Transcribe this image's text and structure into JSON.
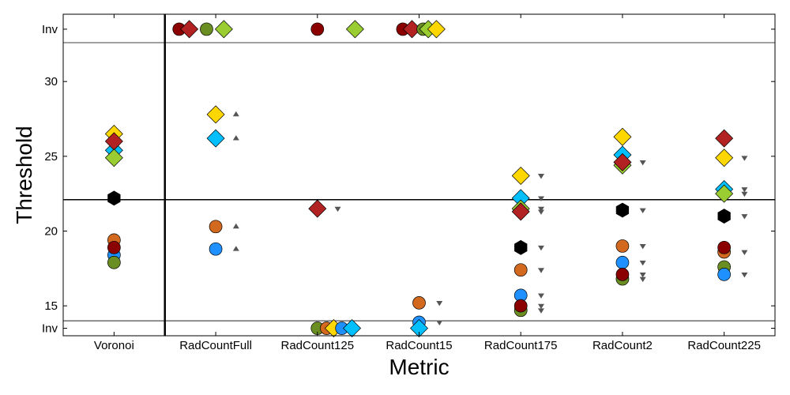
{
  "chart_data": {
    "type": "scatter",
    "xlabel": "Metric",
    "ylabel": "Threshold",
    "categories": [
      "Voronoi",
      "RadCountFull",
      "RadCount125",
      "RadCount15",
      "RadCount175",
      "RadCount2",
      "RadCount225"
    ],
    "ylim": [
      13.0,
      34.5
    ],
    "ytick_values": [
      15,
      20,
      25,
      30
    ],
    "ytick_labels": [
      "15",
      "20",
      "25",
      "30"
    ],
    "inv_label": "Inv",
    "inv_top_value": 33.5,
    "inv_bottom_value": 13.5,
    "reference_lines": [
      32.6,
      22.1,
      14.0
    ],
    "grid": false,
    "legend": "none",
    "colors": {
      "gold": "#FFD700",
      "deepskyblue": "#00BFFF",
      "firebrick": "#B22222",
      "yellowgreen": "#9ACD32",
      "black": "#000000",
      "chocolate": "#D2691E",
      "dodgerblue": "#1E90FF",
      "darkred": "#8B0000",
      "olivedrab": "#6B8E23",
      "arrow": "#555555"
    },
    "points": [
      {
        "cat": "Voronoi",
        "offset": 0,
        "y": 26.5,
        "shape": "diamond",
        "color": "gold"
      },
      {
        "cat": "Voronoi",
        "offset": 0,
        "y": 25.4,
        "shape": "diamond",
        "color": "deepskyblue"
      },
      {
        "cat": "Voronoi",
        "offset": 0,
        "y": 26.0,
        "shape": "diamond",
        "color": "firebrick"
      },
      {
        "cat": "Voronoi",
        "offset": 0,
        "y": 24.9,
        "shape": "diamond",
        "color": "yellowgreen"
      },
      {
        "cat": "Voronoi",
        "offset": 0,
        "y": 22.2,
        "shape": "hexagon",
        "color": "black"
      },
      {
        "cat": "Voronoi",
        "offset": 0,
        "y": 19.4,
        "shape": "circle",
        "color": "chocolate"
      },
      {
        "cat": "Voronoi",
        "offset": 0,
        "y": 18.4,
        "shape": "circle",
        "color": "dodgerblue"
      },
      {
        "cat": "Voronoi",
        "offset": 0,
        "y": 18.9,
        "shape": "circle",
        "color": "darkred"
      },
      {
        "cat": "Voronoi",
        "offset": 0,
        "y": 17.9,
        "shape": "circle",
        "color": "olivedrab"
      },
      {
        "cat": "RadCountFull",
        "offset": -0.36,
        "y": 33.5,
        "shape": "circle",
        "color": "darkred"
      },
      {
        "cat": "RadCountFull",
        "offset": -0.26,
        "y": 33.5,
        "shape": "diamond",
        "color": "firebrick"
      },
      {
        "cat": "RadCountFull",
        "offset": -0.09,
        "y": 33.5,
        "shape": "circle",
        "color": "olivedrab"
      },
      {
        "cat": "RadCountFull",
        "offset": 0.08,
        "y": 33.5,
        "shape": "diamond",
        "color": "yellowgreen"
      },
      {
        "cat": "RadCountFull",
        "offset": 0,
        "y": 27.8,
        "shape": "diamond",
        "color": "gold"
      },
      {
        "cat": "RadCountFull",
        "offset": 0,
        "y": 26.2,
        "shape": "diamond",
        "color": "deepskyblue"
      },
      {
        "cat": "RadCountFull",
        "offset": 0,
        "y": 20.3,
        "shape": "circle",
        "color": "chocolate"
      },
      {
        "cat": "RadCountFull",
        "offset": 0,
        "y": 18.8,
        "shape": "circle",
        "color": "dodgerblue"
      },
      {
        "cat": "RadCount125",
        "offset": 0,
        "y": 33.5,
        "shape": "circle",
        "color": "darkred"
      },
      {
        "cat": "RadCount125",
        "offset": 0.37,
        "y": 33.5,
        "shape": "diamond",
        "color": "yellowgreen"
      },
      {
        "cat": "RadCount125",
        "offset": 0,
        "y": 21.5,
        "shape": "diamond",
        "color": "firebrick"
      },
      {
        "cat": "RadCount125",
        "offset": 0,
        "y": 13.5,
        "shape": "circle",
        "color": "olivedrab"
      },
      {
        "cat": "RadCount125",
        "offset": 0.09,
        "y": 13.5,
        "shape": "circle",
        "color": "chocolate"
      },
      {
        "cat": "RadCount125",
        "offset": 0.16,
        "y": 13.5,
        "shape": "diamond",
        "color": "gold"
      },
      {
        "cat": "RadCount125",
        "offset": 0.24,
        "y": 13.5,
        "shape": "circle",
        "color": "dodgerblue"
      },
      {
        "cat": "RadCount125",
        "offset": 0.34,
        "y": 13.5,
        "shape": "diamond",
        "color": "deepskyblue"
      },
      {
        "cat": "RadCount15",
        "offset": -0.16,
        "y": 33.5,
        "shape": "circle",
        "color": "darkred"
      },
      {
        "cat": "RadCount15",
        "offset": -0.07,
        "y": 33.5,
        "shape": "diamond",
        "color": "firebrick"
      },
      {
        "cat": "RadCount15",
        "offset": 0.04,
        "y": 33.5,
        "shape": "circle",
        "color": "olivedrab"
      },
      {
        "cat": "RadCount15",
        "offset": 0.09,
        "y": 33.5,
        "shape": "diamond",
        "color": "yellowgreen"
      },
      {
        "cat": "RadCount15",
        "offset": 0.17,
        "y": 33.5,
        "shape": "diamond",
        "color": "gold"
      },
      {
        "cat": "RadCount15",
        "offset": 0,
        "y": 15.2,
        "shape": "circle",
        "color": "chocolate"
      },
      {
        "cat": "RadCount15",
        "offset": 0,
        "y": 13.9,
        "shape": "circle",
        "color": "dodgerblue"
      },
      {
        "cat": "RadCount15",
        "offset": 0,
        "y": 13.5,
        "shape": "diamond",
        "color": "deepskyblue"
      },
      {
        "cat": "RadCount175",
        "offset": 0,
        "y": 23.7,
        "shape": "diamond",
        "color": "gold"
      },
      {
        "cat": "RadCount175",
        "offset": 0,
        "y": 22.2,
        "shape": "diamond",
        "color": "deepskyblue"
      },
      {
        "cat": "RadCount175",
        "offset": 0,
        "y": 21.5,
        "shape": "diamond",
        "color": "yellowgreen"
      },
      {
        "cat": "RadCount175",
        "offset": 0,
        "y": 21.3,
        "shape": "diamond",
        "color": "firebrick"
      },
      {
        "cat": "RadCount175",
        "offset": 0,
        "y": 18.9,
        "shape": "hexagon",
        "color": "black"
      },
      {
        "cat": "RadCount175",
        "offset": 0,
        "y": 17.4,
        "shape": "circle",
        "color": "chocolate"
      },
      {
        "cat": "RadCount175",
        "offset": 0,
        "y": 15.7,
        "shape": "circle",
        "color": "dodgerblue"
      },
      {
        "cat": "RadCount175",
        "offset": 0,
        "y": 14.7,
        "shape": "circle",
        "color": "olivedrab"
      },
      {
        "cat": "RadCount175",
        "offset": 0,
        "y": 15.0,
        "shape": "circle",
        "color": "darkred"
      },
      {
        "cat": "RadCount2",
        "offset": 0,
        "y": 26.3,
        "shape": "diamond",
        "color": "gold"
      },
      {
        "cat": "RadCount2",
        "offset": 0,
        "y": 25.1,
        "shape": "diamond",
        "color": "deepskyblue"
      },
      {
        "cat": "RadCount2",
        "offset": 0,
        "y": 24.4,
        "shape": "diamond",
        "color": "yellowgreen"
      },
      {
        "cat": "RadCount2",
        "offset": 0,
        "y": 24.6,
        "shape": "diamond",
        "color": "firebrick"
      },
      {
        "cat": "RadCount2",
        "offset": 0,
        "y": 21.4,
        "shape": "hexagon",
        "color": "black"
      },
      {
        "cat": "RadCount2",
        "offset": 0,
        "y": 19.0,
        "shape": "circle",
        "color": "chocolate"
      },
      {
        "cat": "RadCount2",
        "offset": 0,
        "y": 17.9,
        "shape": "circle",
        "color": "dodgerblue"
      },
      {
        "cat": "RadCount2",
        "offset": 0,
        "y": 16.8,
        "shape": "circle",
        "color": "olivedrab"
      },
      {
        "cat": "RadCount2",
        "offset": 0,
        "y": 17.1,
        "shape": "circle",
        "color": "darkred"
      },
      {
        "cat": "RadCount225",
        "offset": 0,
        "y": 26.2,
        "shape": "diamond",
        "color": "firebrick"
      },
      {
        "cat": "RadCount225",
        "offset": 0,
        "y": 24.9,
        "shape": "diamond",
        "color": "gold"
      },
      {
        "cat": "RadCount225",
        "offset": 0,
        "y": 22.8,
        "shape": "diamond",
        "color": "deepskyblue"
      },
      {
        "cat": "RadCount225",
        "offset": 0,
        "y": 22.5,
        "shape": "diamond",
        "color": "yellowgreen"
      },
      {
        "cat": "RadCount225",
        "offset": 0,
        "y": 21.0,
        "shape": "hexagon",
        "color": "black"
      },
      {
        "cat": "RadCount225",
        "offset": 0,
        "y": 18.6,
        "shape": "circle",
        "color": "chocolate"
      },
      {
        "cat": "RadCount225",
        "offset": 0,
        "y": 18.9,
        "shape": "circle",
        "color": "darkred"
      },
      {
        "cat": "RadCount225",
        "offset": 0,
        "y": 17.6,
        "shape": "circle",
        "color": "olivedrab"
      },
      {
        "cat": "RadCount225",
        "offset": 0,
        "y": 17.1,
        "shape": "circle",
        "color": "dodgerblue"
      }
    ],
    "arrows": [
      {
        "cat": "RadCountFull",
        "y": 27.8,
        "dir": "up"
      },
      {
        "cat": "RadCountFull",
        "y": 26.2,
        "dir": "up"
      },
      {
        "cat": "RadCountFull",
        "y": 20.3,
        "dir": "up"
      },
      {
        "cat": "RadCountFull",
        "y": 18.8,
        "dir": "up"
      },
      {
        "cat": "RadCount125",
        "y": 21.5,
        "dir": "down"
      },
      {
        "cat": "RadCount15",
        "y": 15.2,
        "dir": "down"
      },
      {
        "cat": "RadCount15",
        "y": 13.9,
        "dir": "down"
      },
      {
        "cat": "RadCount175",
        "y": 23.7,
        "dir": "down"
      },
      {
        "cat": "RadCount175",
        "y": 22.2,
        "dir": "down"
      },
      {
        "cat": "RadCount175",
        "y": 21.5,
        "dir": "down"
      },
      {
        "cat": "RadCount175",
        "y": 21.3,
        "dir": "down"
      },
      {
        "cat": "RadCount175",
        "y": 18.9,
        "dir": "down"
      },
      {
        "cat": "RadCount175",
        "y": 17.4,
        "dir": "down"
      },
      {
        "cat": "RadCount175",
        "y": 15.7,
        "dir": "down"
      },
      {
        "cat": "RadCount175",
        "y": 15.0,
        "dir": "down"
      },
      {
        "cat": "RadCount175",
        "y": 14.7,
        "dir": "down"
      },
      {
        "cat": "RadCount2",
        "y": 24.6,
        "dir": "down"
      },
      {
        "cat": "RadCount2",
        "y": 21.4,
        "dir": "down"
      },
      {
        "cat": "RadCount2",
        "y": 19.0,
        "dir": "down"
      },
      {
        "cat": "RadCount2",
        "y": 17.9,
        "dir": "down"
      },
      {
        "cat": "RadCount2",
        "y": 17.1,
        "dir": "down"
      },
      {
        "cat": "RadCount2",
        "y": 16.8,
        "dir": "down"
      },
      {
        "cat": "RadCount225",
        "y": 24.9,
        "dir": "down"
      },
      {
        "cat": "RadCount225",
        "y": 22.8,
        "dir": "down"
      },
      {
        "cat": "RadCount225",
        "y": 22.5,
        "dir": "down"
      },
      {
        "cat": "RadCount225",
        "y": 21.0,
        "dir": "down"
      },
      {
        "cat": "RadCount225",
        "y": 18.6,
        "dir": "down"
      },
      {
        "cat": "RadCount225",
        "y": 17.1,
        "dir": "down"
      }
    ]
  }
}
